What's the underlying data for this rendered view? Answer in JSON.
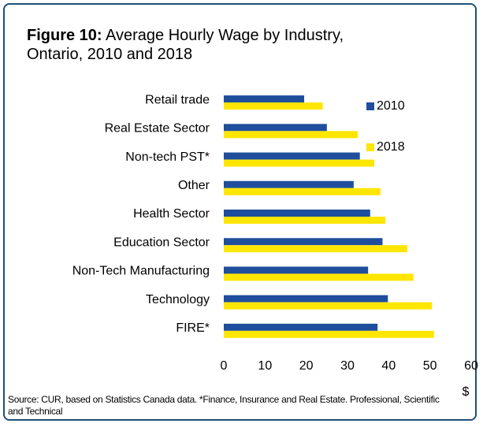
{
  "chart_data": {
    "type": "barh",
    "figure_label": "Figure 10:",
    "title": "Average Hourly Wage by Industry, Ontario, 2010 and 2018",
    "categories": [
      "Retail trade",
      "Real Estate Sector",
      "Non-tech PST*",
      "Other",
      "Health Sector",
      "Education Sector",
      "Non-Tech Manufacturing",
      "Technology",
      "FIRE*"
    ],
    "series": [
      {
        "name": "2010",
        "color": "#1f4e9c",
        "values": [
          19.5,
          25,
          33,
          31.5,
          35.5,
          38.5,
          35,
          39.8,
          37.3
        ]
      },
      {
        "name": "2018",
        "color": "#ffe600",
        "values": [
          24,
          32.5,
          36.5,
          38,
          39.2,
          44.5,
          46,
          50.5,
          51
        ]
      }
    ],
    "xlim": [
      0,
      60
    ],
    "xticks": [
      0,
      10,
      20,
      30,
      40,
      50,
      60
    ],
    "xlabel": "$",
    "grid": false,
    "source": "Source: CUR, based on Statistics Canada data. *Finance, Insurance and Real Estate. Professional, Scientific and Technical"
  }
}
